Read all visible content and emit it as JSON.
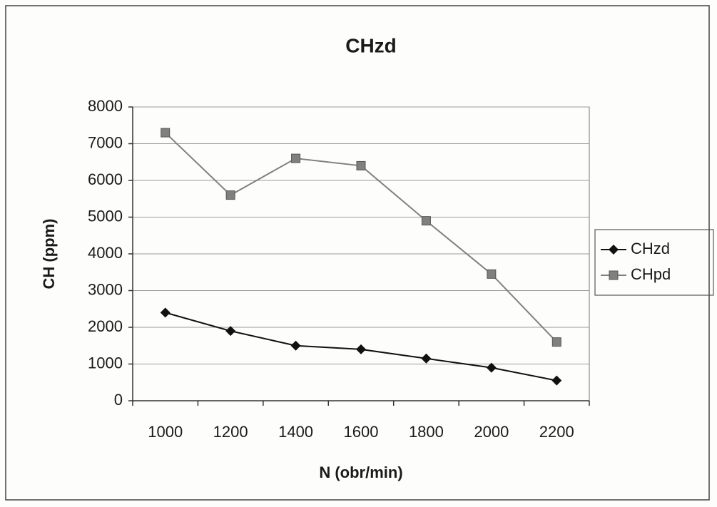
{
  "chart_data": {
    "type": "line",
    "title": "CHzd",
    "x_label": "N (obr/min)",
    "y_label": "CH (ppm)",
    "categories": [
      1000,
      1200,
      1400,
      1600,
      1800,
      2000,
      2200
    ],
    "series": [
      {
        "name": "CHzd",
        "color": "#111111",
        "marker": "diamond",
        "values": [
          2400,
          1900,
          1500,
          1400,
          1150,
          900,
          550
        ]
      },
      {
        "name": "CHpd",
        "color": "#808080",
        "marker": "square",
        "values": [
          7300,
          5600,
          6600,
          6400,
          4900,
          3450,
          1600
        ]
      }
    ],
    "ylim": [
      0,
      8000
    ],
    "yticks": [
      0,
      1000,
      2000,
      3000,
      4000,
      5000,
      6000,
      7000,
      8000
    ],
    "grid": true,
    "legend": "right"
  }
}
